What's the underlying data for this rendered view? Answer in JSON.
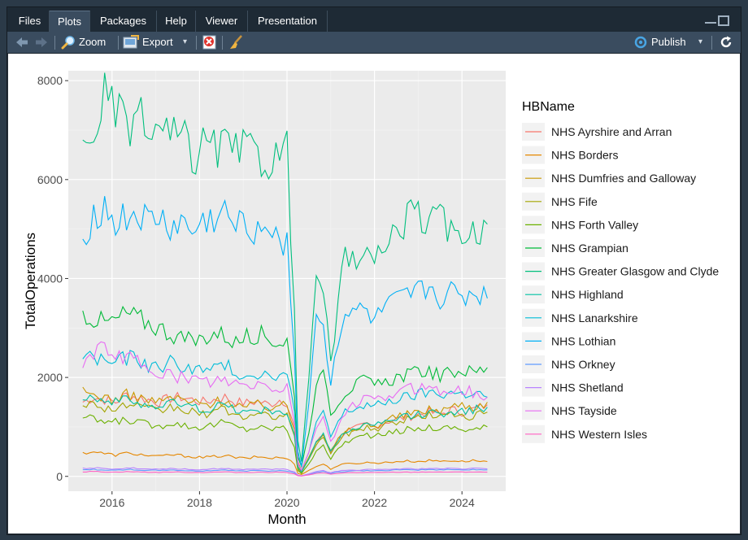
{
  "tabs": [
    {
      "label": "Files",
      "active": false
    },
    {
      "label": "Plots",
      "active": true
    },
    {
      "label": "Packages",
      "active": false
    },
    {
      "label": "Help",
      "active": false
    },
    {
      "label": "Viewer",
      "active": false
    },
    {
      "label": "Presentation",
      "active": false
    }
  ],
  "toolbar": {
    "zoom_label": "Zoom",
    "export_label": "Export",
    "export_caret": "▾",
    "publish_label": "Publish",
    "publish_caret": "▾"
  },
  "icons": {
    "back": "back-arrow-icon",
    "forward": "forward-arrow-icon",
    "zoom": "zoom-icon",
    "export": "export-icon",
    "remove": "remove-plot-icon",
    "clear": "broom-icon",
    "publish": "publish-icon",
    "refresh": "refresh-icon"
  },
  "colors": {
    "panel_background": "#ebebeb",
    "grid_major": "#ffffff",
    "accent_blue": "#49a5e3"
  },
  "chart_data": {
    "type": "line",
    "xlabel": "Month",
    "ylabel": "TotalOperations",
    "legend_title": "HBName",
    "legend_position": "right",
    "grid": true,
    "xlim": [
      2015.0,
      2025.0
    ],
    "ylim": [
      -300,
      8200
    ],
    "x_ticks": [
      2016,
      2018,
      2020,
      2022,
      2024
    ],
    "y_ticks": [
      0,
      2000,
      4000,
      6000,
      8000
    ],
    "anchor_x": [
      2015.33,
      2015.58,
      2015.83,
      2016.08,
      2016.33,
      2016.58,
      2016.83,
      2017.08,
      2017.33,
      2017.58,
      2017.83,
      2018.08,
      2018.33,
      2018.58,
      2018.83,
      2019.08,
      2019.33,
      2019.58,
      2019.83,
      2020.0,
      2020.17,
      2020.25,
      2020.33,
      2020.5,
      2020.67,
      2020.83,
      2021.0,
      2021.17,
      2021.33,
      2021.5,
      2021.67,
      2021.83,
      2022.0,
      2022.25,
      2022.5,
      2022.75,
      2023.0,
      2023.25,
      2023.5,
      2023.75,
      2024.0,
      2024.25,
      2024.58
    ],
    "series": [
      {
        "name": "NHS Ayrshire and Arran",
        "color": "#F8766D",
        "values": [
          1500,
          1600,
          1550,
          1500,
          1650,
          1600,
          1550,
          1500,
          1580,
          1600,
          1550,
          1500,
          1550,
          1600,
          1500,
          1480,
          1520,
          1450,
          1550,
          1500,
          1000,
          300,
          120,
          350,
          700,
          850,
          500,
          750,
          900,
          950,
          1000,
          1050,
          1000,
          1100,
          1150,
          1200,
          1250,
          1300,
          1250,
          1350,
          1300,
          1350,
          1450
        ]
      },
      {
        "name": "NHS Borders",
        "color": "#E58700",
        "values": [
          470,
          500,
          460,
          430,
          470,
          450,
          420,
          400,
          440,
          420,
          400,
          380,
          400,
          420,
          380,
          360,
          400,
          370,
          380,
          360,
          250,
          60,
          40,
          120,
          200,
          250,
          150,
          220,
          250,
          260,
          270,
          280,
          270,
          280,
          300,
          310,
          300,
          320,
          310,
          320,
          300,
          320,
          300
        ]
      },
      {
        "name": "NHS Dumfries and Galloway",
        "color": "#C99800",
        "values": [
          1700,
          1650,
          1600,
          1550,
          1650,
          1600,
          1550,
          1500,
          1600,
          1550,
          1500,
          1450,
          1500,
          1550,
          1450,
          1400,
          1450,
          1400,
          1450,
          1400,
          950,
          200,
          100,
          400,
          700,
          850,
          500,
          750,
          900,
          950,
          1000,
          1050,
          1000,
          1150,
          1200,
          1250,
          1300,
          1350,
          1350,
          1400,
          1450,
          1400,
          1500
        ]
      },
      {
        "name": "NHS Fife",
        "color": "#A3A500",
        "values": [
          1500,
          1450,
          1400,
          1350,
          1450,
          1400,
          1350,
          1300,
          1400,
          1350,
          1300,
          1250,
          1300,
          1350,
          1250,
          1200,
          1250,
          1200,
          1250,
          1200,
          800,
          150,
          80,
          350,
          650,
          800,
          450,
          700,
          850,
          900,
          950,
          1000,
          950,
          1050,
          1100,
          1150,
          1200,
          1250,
          1200,
          1250,
          1250,
          1200,
          1300
        ]
      },
      {
        "name": "NHS Forth Valley",
        "color": "#6BB100",
        "values": [
          1200,
          1150,
          1100,
          1100,
          1150,
          1100,
          1050,
          1000,
          1100,
          1050,
          1000,
          1000,
          1050,
          1100,
          1000,
          950,
          1000,
          950,
          1000,
          950,
          600,
          120,
          60,
          250,
          500,
          650,
          350,
          550,
          700,
          750,
          800,
          850,
          800,
          850,
          900,
          950,
          950,
          1000,
          950,
          1000,
          950,
          950,
          1000
        ]
      },
      {
        "name": "NHS Grampian",
        "color": "#00BA38",
        "values": [
          3300,
          3200,
          3100,
          3150,
          3300,
          3200,
          3100,
          3000,
          2900,
          2800,
          2700,
          2800,
          2900,
          2850,
          2700,
          2800,
          2900,
          2800,
          2700,
          2750,
          1600,
          400,
          200,
          900,
          1800,
          2200,
          1300,
          1500,
          1700,
          1800,
          1900,
          1950,
          1800,
          1900,
          2000,
          2050,
          2100,
          2150,
          2000,
          2100,
          2150,
          2100,
          2200
        ]
      },
      {
        "name": "NHS Greater Glasgow and Clyde",
        "color": "#00BF7D",
        "values": [
          6500,
          7000,
          7700,
          7300,
          7100,
          7300,
          6900,
          7000,
          6800,
          6900,
          6400,
          6700,
          6600,
          6700,
          6500,
          6600,
          6500,
          6400,
          6500,
          6600,
          3500,
          700,
          300,
          2000,
          4000,
          3800,
          2200,
          3500,
          4500,
          4300,
          4600,
          4500,
          4200,
          4700,
          5000,
          5200,
          5300,
          5100,
          5200,
          4900,
          5000,
          4900,
          5100
        ]
      },
      {
        "name": "NHS Highland",
        "color": "#00C1A3",
        "values": [
          1650,
          1600,
          1550,
          1500,
          1550,
          1500,
          1450,
          1400,
          1500,
          1450,
          1400,
          1350,
          1400,
          1450,
          1350,
          1300,
          1350,
          1300,
          1350,
          1300,
          850,
          180,
          90,
          350,
          700,
          850,
          500,
          750,
          900,
          950,
          1000,
          1050,
          1000,
          1100,
          1150,
          1200,
          1250,
          1300,
          1250,
          1350,
          1300,
          1350,
          1400
        ]
      },
      {
        "name": "NHS Lanarkshire",
        "color": "#00BCD8",
        "values": [
          2450,
          2400,
          2350,
          2300,
          2400,
          2350,
          2250,
          2200,
          2300,
          2250,
          2200,
          2100,
          2200,
          2250,
          2100,
          2050,
          2100,
          2050,
          2100,
          2050,
          1300,
          250,
          120,
          500,
          1100,
          1300,
          800,
          1100,
          1300,
          1350,
          1400,
          1450,
          1400,
          1500,
          1550,
          1600,
          1650,
          1700,
          1650,
          1700,
          1650,
          1700,
          1600
        ]
      },
      {
        "name": "NHS Lothian",
        "color": "#00B0F6",
        "values": [
          4800,
          5300,
          5400,
          5100,
          5200,
          5300,
          5100,
          5200,
          5000,
          5100,
          4900,
          5100,
          5200,
          5300,
          5000,
          5100,
          5000,
          5100,
          4900,
          4700,
          2500,
          500,
          200,
          1500,
          3300,
          3000,
          1900,
          2800,
          3300,
          3200,
          3400,
          3300,
          3100,
          3400,
          3500,
          3600,
          3700,
          3800,
          3600,
          3700,
          3600,
          3700,
          3600
        ]
      },
      {
        "name": "NHS Orkney",
        "color": "#619CFF",
        "values": [
          130,
          140,
          130,
          120,
          140,
          130,
          120,
          120,
          130,
          120,
          110,
          110,
          120,
          130,
          110,
          110,
          120,
          110,
          120,
          110,
          70,
          20,
          10,
          40,
          80,
          100,
          60,
          90,
          100,
          110,
          110,
          120,
          110,
          120,
          130,
          130,
          130,
          140,
          130,
          140,
          130,
          140,
          130
        ]
      },
      {
        "name": "NHS Shetland",
        "color": "#B983FF",
        "values": [
          160,
          170,
          160,
          150,
          170,
          160,
          150,
          150,
          160,
          150,
          140,
          140,
          150,
          160,
          140,
          140,
          150,
          140,
          150,
          140,
          90,
          25,
          12,
          50,
          100,
          120,
          70,
          110,
          120,
          130,
          130,
          140,
          130,
          140,
          150,
          150,
          150,
          160,
          150,
          160,
          150,
          160,
          150
        ]
      },
      {
        "name": "NHS Tayside",
        "color": "#E76BF3",
        "values": [
          2300,
          2450,
          2600,
          2500,
          2400,
          2300,
          2200,
          2100,
          2050,
          2000,
          1950,
          1900,
          1950,
          1900,
          1850,
          1800,
          1850,
          1800,
          1750,
          1800,
          1100,
          250,
          120,
          500,
          1000,
          1200,
          700,
          1000,
          1300,
          1400,
          1500,
          1600,
          1500,
          1600,
          1700,
          1750,
          1800,
          1850,
          1700,
          1800,
          1750,
          1700,
          1600
        ]
      },
      {
        "name": "NHS Western Isles",
        "color": "#FF61C3",
        "values": [
          90,
          100,
          90,
          85,
          95,
          90,
          85,
          80,
          90,
          85,
          80,
          80,
          85,
          90,
          80,
          80,
          85,
          80,
          85,
          80,
          50,
          15,
          8,
          30,
          60,
          70,
          45,
          65,
          70,
          75,
          75,
          80,
          75,
          80,
          85,
          85,
          85,
          90,
          85,
          90,
          85,
          90,
          85
        ]
      }
    ]
  }
}
